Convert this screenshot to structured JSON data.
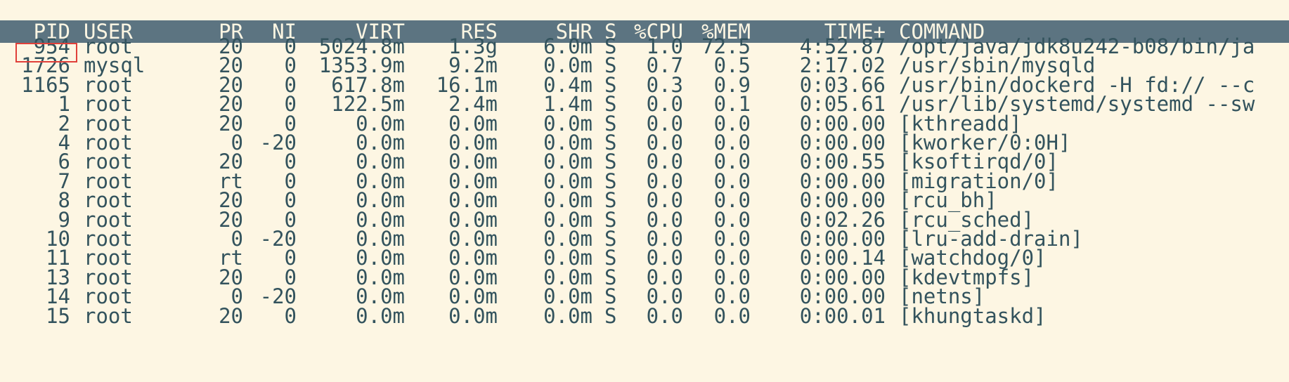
{
  "header": {
    "pid": "PID",
    "user": "USER",
    "pr": "PR",
    "ni": "NI",
    "virt": "VIRT",
    "res": "RES",
    "shr": "SHR",
    "s": "S",
    "cpu": "%CPU",
    "mem": "%MEM",
    "time": "TIME+",
    "command": "COMMAND"
  },
  "selected_pid": "954",
  "processes": [
    {
      "pid": "954",
      "user": "root",
      "pr": "20",
      "ni": "0",
      "virt": "5024.8m",
      "res": "1.3g",
      "shr": "6.0m",
      "s": "S",
      "cpu": "1.0",
      "mem": "72.5",
      "time": "4:52.87",
      "command": "/opt/java/jdk8u242-b08/bin/ja"
    },
    {
      "pid": "1726",
      "user": "mysql",
      "pr": "20",
      "ni": "0",
      "virt": "1353.9m",
      "res": "9.2m",
      "shr": "0.0m",
      "s": "S",
      "cpu": "0.7",
      "mem": "0.5",
      "time": "2:17.02",
      "command": "/usr/sbin/mysqld"
    },
    {
      "pid": "1165",
      "user": "root",
      "pr": "20",
      "ni": "0",
      "virt": "617.8m",
      "res": "16.1m",
      "shr": "0.4m",
      "s": "S",
      "cpu": "0.3",
      "mem": "0.9",
      "time": "0:03.66",
      "command": "/usr/bin/dockerd -H fd:// --c"
    },
    {
      "pid": "1",
      "user": "root",
      "pr": "20",
      "ni": "0",
      "virt": "122.5m",
      "res": "2.4m",
      "shr": "1.4m",
      "s": "S",
      "cpu": "0.0",
      "mem": "0.1",
      "time": "0:05.61",
      "command": "/usr/lib/systemd/systemd --sw"
    },
    {
      "pid": "2",
      "user": "root",
      "pr": "20",
      "ni": "0",
      "virt": "0.0m",
      "res": "0.0m",
      "shr": "0.0m",
      "s": "S",
      "cpu": "0.0",
      "mem": "0.0",
      "time": "0:00.00",
      "command": "[kthreadd]"
    },
    {
      "pid": "4",
      "user": "root",
      "pr": "0",
      "ni": "-20",
      "virt": "0.0m",
      "res": "0.0m",
      "shr": "0.0m",
      "s": "S",
      "cpu": "0.0",
      "mem": "0.0",
      "time": "0:00.00",
      "command": "[kworker/0:0H]"
    },
    {
      "pid": "6",
      "user": "root",
      "pr": "20",
      "ni": "0",
      "virt": "0.0m",
      "res": "0.0m",
      "shr": "0.0m",
      "s": "S",
      "cpu": "0.0",
      "mem": "0.0",
      "time": "0:00.55",
      "command": "[ksoftirqd/0]"
    },
    {
      "pid": "7",
      "user": "root",
      "pr": "rt",
      "ni": "0",
      "virt": "0.0m",
      "res": "0.0m",
      "shr": "0.0m",
      "s": "S",
      "cpu": "0.0",
      "mem": "0.0",
      "time": "0:00.00",
      "command": "[migration/0]"
    },
    {
      "pid": "8",
      "user": "root",
      "pr": "20",
      "ni": "0",
      "virt": "0.0m",
      "res": "0.0m",
      "shr": "0.0m",
      "s": "S",
      "cpu": "0.0",
      "mem": "0.0",
      "time": "0:00.00",
      "command": "[rcu_bh]"
    },
    {
      "pid": "9",
      "user": "root",
      "pr": "20",
      "ni": "0",
      "virt": "0.0m",
      "res": "0.0m",
      "shr": "0.0m",
      "s": "S",
      "cpu": "0.0",
      "mem": "0.0",
      "time": "0:02.26",
      "command": "[rcu_sched]"
    },
    {
      "pid": "10",
      "user": "root",
      "pr": "0",
      "ni": "-20",
      "virt": "0.0m",
      "res": "0.0m",
      "shr": "0.0m",
      "s": "S",
      "cpu": "0.0",
      "mem": "0.0",
      "time": "0:00.00",
      "command": "[lru-add-drain]"
    },
    {
      "pid": "11",
      "user": "root",
      "pr": "rt",
      "ni": "0",
      "virt": "0.0m",
      "res": "0.0m",
      "shr": "0.0m",
      "s": "S",
      "cpu": "0.0",
      "mem": "0.0",
      "time": "0:00.14",
      "command": "[watchdog/0]"
    },
    {
      "pid": "13",
      "user": "root",
      "pr": "20",
      "ni": "0",
      "virt": "0.0m",
      "res": "0.0m",
      "shr": "0.0m",
      "s": "S",
      "cpu": "0.0",
      "mem": "0.0",
      "time": "0:00.00",
      "command": "[kdevtmpfs]"
    },
    {
      "pid": "14",
      "user": "root",
      "pr": "0",
      "ni": "-20",
      "virt": "0.0m",
      "res": "0.0m",
      "shr": "0.0m",
      "s": "S",
      "cpu": "0.0",
      "mem": "0.0",
      "time": "0:00.00",
      "command": "[netns]"
    },
    {
      "pid": "15",
      "user": "root",
      "pr": "20",
      "ni": "0",
      "virt": "0.0m",
      "res": "0.0m",
      "shr": "0.0m",
      "s": "S",
      "cpu": "0.0",
      "mem": "0.0",
      "time": "0:00.01",
      "command": "[khungtaskd]"
    }
  ],
  "colors": {
    "background": "#fdf6e3",
    "header_bar": "#5c7481",
    "text": "#33535d",
    "selection_box": "#e0403a"
  }
}
